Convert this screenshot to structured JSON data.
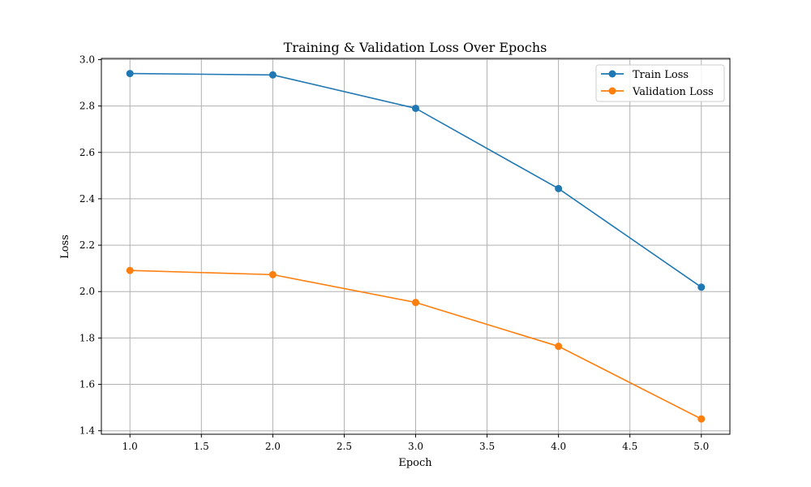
{
  "chart_data": {
    "type": "line",
    "title": "Training & Validation Loss Over Epochs",
    "xlabel": "Epoch",
    "ylabel": "Loss",
    "x": [
      1,
      2,
      3,
      4,
      5
    ],
    "xlim": [
      0.8,
      5.2
    ],
    "ylim": [
      1.385,
      3.005
    ],
    "xticks": [
      "1.0",
      "1.5",
      "2.0",
      "2.5",
      "3.0",
      "3.5",
      "4.0",
      "4.5",
      "5.0"
    ],
    "yticks": [
      "1.4",
      "1.6",
      "1.8",
      "2.0",
      "2.2",
      "2.4",
      "2.6",
      "2.8",
      "3.0"
    ],
    "grid": true,
    "legend_position": "top-right",
    "series": [
      {
        "name": "Train Loss",
        "color": "#1f77b4",
        "values": [
          2.94,
          2.934,
          2.79,
          2.444,
          2.019
        ]
      },
      {
        "name": "Validation Loss",
        "color": "#ff7f0e",
        "values": [
          2.091,
          2.073,
          1.953,
          1.764,
          1.451
        ]
      }
    ]
  }
}
